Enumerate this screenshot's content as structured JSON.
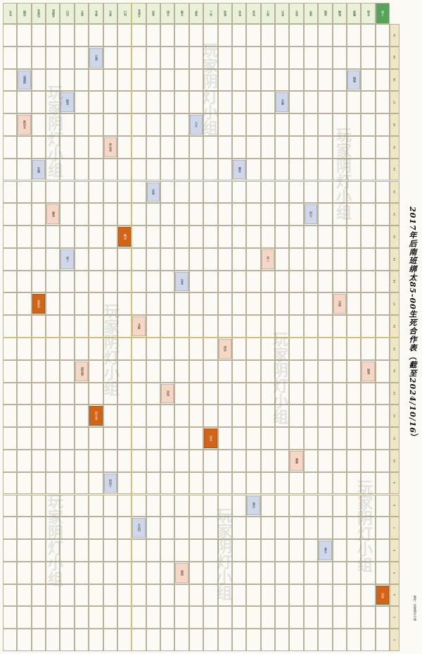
{
  "title": "2017年后南班绑太85-00生死合作表（截至2024/10/16）",
  "note": "制作：玩家阴灯小组",
  "watermark": "玩家阴灯小组",
  "row_labels": [
    "仓光",
    "范围",
    "玩家名",
    "关晓彤",
    "仅日",
    "张艺",
    "第名",
    "荣凡",
    "仙川",
    "大家名",
    "金洪",
    "王帆",
    "玉源",
    "吴梦",
    "宗三",
    "陈兆",
    "旺名",
    "宋龙",
    "兆江",
    "苏乃",
    "亚光",
    "张华",
    "金瑞",
    "陈楠",
    "魏源",
    "齐超",
    "丁新"
  ],
  "col_labels": [
    "31",
    "29",
    "28",
    "27",
    "25",
    "24",
    "23",
    "22",
    "21",
    "20",
    "19",
    "18",
    "17",
    "16",
    "15",
    "14",
    "13",
    "12",
    "11",
    "10",
    "9",
    "8",
    "7",
    "6",
    "5",
    "4",
    "3",
    "2"
  ],
  "tags": [
    {
      "row": 1,
      "col": 2,
      "color": "blue",
      "label": "如懿传"
    },
    {
      "row": 1,
      "col": 4,
      "color": "pink",
      "label": "长风渡"
    },
    {
      "row": 2,
      "col": 6,
      "color": "blue",
      "label": "繁花"
    },
    {
      "row": 2,
      "col": 12,
      "color": "orange",
      "label": "庆余年"
    },
    {
      "row": 3,
      "col": 8,
      "color": "pink",
      "label": "狂飙"
    },
    {
      "row": 4,
      "col": 3,
      "color": "blue",
      "label": "玫瑰"
    },
    {
      "row": 4,
      "col": 10,
      "color": "blue",
      "label": "三体"
    },
    {
      "row": 5,
      "col": 15,
      "color": "pink",
      "label": "莲花楼"
    },
    {
      "row": 6,
      "col": 1,
      "color": "blue",
      "label": "星汉"
    },
    {
      "row": 6,
      "col": 17,
      "color": "orange",
      "label": "苍兰诀"
    },
    {
      "row": 7,
      "col": 5,
      "color": "pink",
      "label": "梦华录"
    },
    {
      "row": 7,
      "col": 20,
      "color": "blue",
      "label": "人世间"
    },
    {
      "row": 8,
      "col": 9,
      "color": "orange",
      "label": "开端"
    },
    {
      "row": 9,
      "col": 13,
      "color": "pink",
      "label": "漫长"
    },
    {
      "row": 9,
      "col": 22,
      "color": "blue",
      "label": "山河令"
    },
    {
      "row": 10,
      "col": 7,
      "color": "blue",
      "label": "雪中"
    },
    {
      "row": 11,
      "col": 16,
      "color": "pink",
      "label": "知否"
    },
    {
      "row": 12,
      "col": 11,
      "color": "blue",
      "label": "苍穹"
    },
    {
      "row": 12,
      "col": 24,
      "color": "pink",
      "label": "琅琊"
    },
    {
      "row": 13,
      "col": 4,
      "color": "blue",
      "label": "大江"
    },
    {
      "row": 14,
      "col": 18,
      "color": "orange",
      "label": "长月"
    },
    {
      "row": 15,
      "col": 14,
      "color": "pink",
      "label": "风起"
    },
    {
      "row": 16,
      "col": 6,
      "color": "blue",
      "label": "司藤"
    },
    {
      "row": 17,
      "col": 21,
      "color": "blue",
      "label": "沉香"
    },
    {
      "row": 18,
      "col": 10,
      "color": "pink",
      "label": "一念"
    },
    {
      "row": 19,
      "col": 3,
      "color": "blue",
      "label": "锦衣"
    },
    {
      "row": 20,
      "col": 19,
      "color": "pink",
      "label": "卿卿"
    },
    {
      "row": 21,
      "col": 8,
      "color": "blue",
      "label": "与凤"
    },
    {
      "row": 22,
      "col": 23,
      "color": "blue",
      "label": "玉骨"
    },
    {
      "row": 23,
      "col": 12,
      "color": "pink",
      "label": "周生"
    },
    {
      "row": 24,
      "col": 2,
      "color": "blue",
      "label": "微微"
    },
    {
      "row": 25,
      "col": 15,
      "color": "pink",
      "label": "陈情"
    },
    {
      "row": 26,
      "col": 25,
      "color": "orange",
      "label": "欢乐"
    }
  ]
}
